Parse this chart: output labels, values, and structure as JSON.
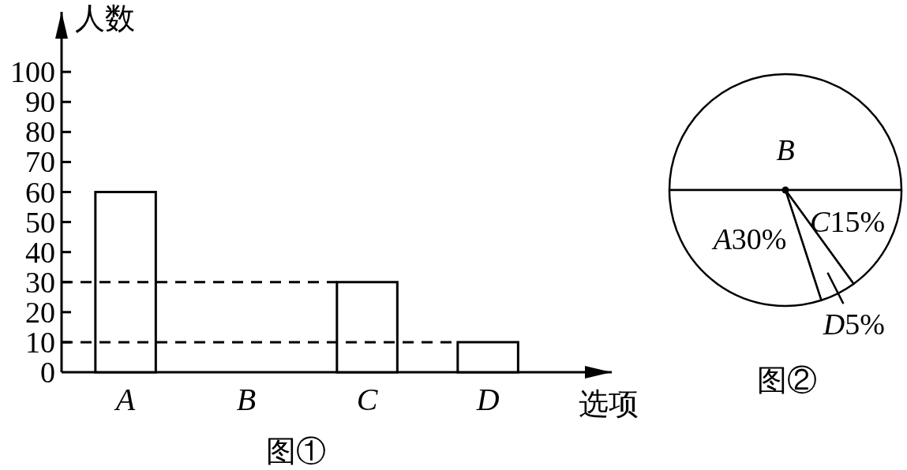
{
  "chart_data": [
    {
      "type": "bar",
      "title": "图①",
      "xlabel": "选项",
      "ylabel": "人数",
      "categories": [
        "A",
        "B",
        "C",
        "D"
      ],
      "values": [
        60,
        null,
        30,
        10
      ],
      "color": "#ffffff",
      "ylim": [
        0,
        120
      ],
      "yticks": [
        0,
        10,
        20,
        30,
        40,
        50,
        60,
        70,
        80,
        90,
        100
      ],
      "ref_lines": [
        {
          "axis": "y",
          "value": 30,
          "line_style": "dashed",
          "color": "#000000"
        },
        {
          "axis": "y",
          "value": 10,
          "line_style": "dashed",
          "color": "#000000"
        }
      ]
    },
    {
      "type": "pie",
      "title": "图②",
      "categories": [
        "B",
        "C",
        "D",
        "A"
      ],
      "values": [
        50,
        15,
        5,
        30
      ],
      "colors": [
        "#ffffff",
        "#ffffff",
        "#ffffff",
        "#ffffff"
      ],
      "value_labels": [
        null,
        "15%",
        "5%",
        "30%"
      ]
    }
  ]
}
